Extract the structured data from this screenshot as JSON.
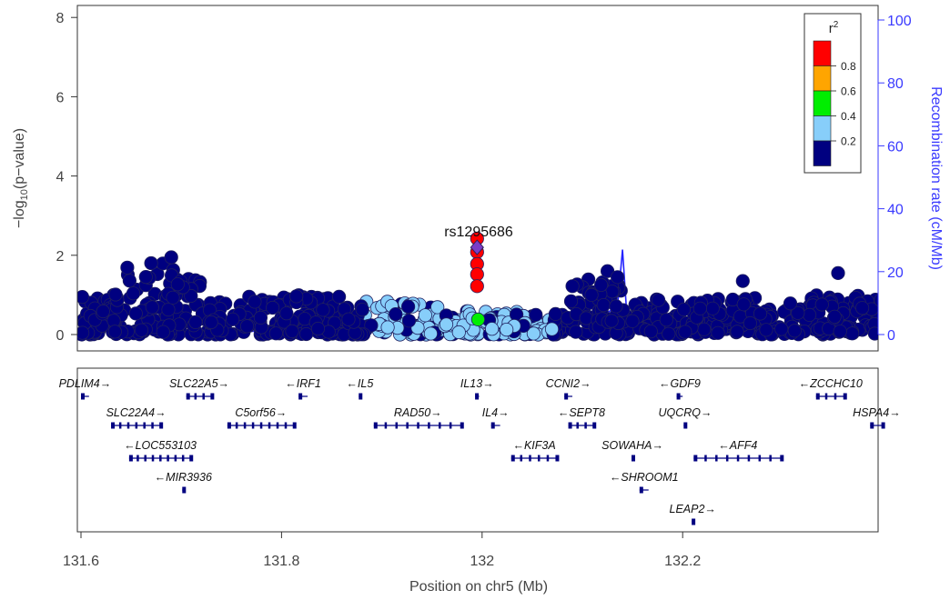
{
  "chart_data": {
    "type": "scatter",
    "xlabel": "Position on chr5 (Mb)",
    "ylabel_left": "−log",
    "ylabel_left_sub": "10",
    "ylabel_left_tail": "(p−value)",
    "ylabel_right": "Recombination rate (cM/Mb)",
    "xlim": [
      131.6,
      132.4
    ],
    "ylim": [
      0,
      8.4
    ],
    "y2lim": [
      0,
      105
    ],
    "x_ticks": [
      "131.6",
      "131.8",
      "132",
      "132.2"
    ],
    "y_ticks": [
      "0",
      "2",
      "4",
      "6",
      "8"
    ],
    "y2_ticks": [
      "0",
      "20",
      "40",
      "60",
      "80",
      "100"
    ],
    "lead_snp": {
      "name": "rs1295686",
      "x": 131.995,
      "y": 2.2
    },
    "legend": {
      "title": "r",
      "title_sup": "2",
      "bins": [
        {
          "label": "0.8",
          "color": "#ff0000"
        },
        {
          "label": "0.6",
          "color": "#ffa500"
        },
        {
          "label": "0.4",
          "color": "#00ee00"
        },
        {
          "label": "0.2",
          "color": "#87cefa"
        },
        {
          "label": "",
          "color": "#000080"
        }
      ]
    },
    "highlight_points": [
      {
        "x": 131.995,
        "y": 2.42,
        "r2": "red"
      },
      {
        "x": 131.995,
        "y": 2.08,
        "r2": "red"
      },
      {
        "x": 131.995,
        "y": 1.78,
        "r2": "red"
      },
      {
        "x": 131.995,
        "y": 1.52,
        "r2": "red"
      },
      {
        "x": 131.995,
        "y": 1.22,
        "r2": "red"
      },
      {
        "x": 131.996,
        "y": 0.38,
        "r2": "green"
      }
    ],
    "recombination_peaks": [
      {
        "x": 131.6,
        "y": 1
      },
      {
        "x": 131.78,
        "y": 1
      },
      {
        "x": 131.83,
        "y": 3
      },
      {
        "x": 131.95,
        "y": 2
      },
      {
        "x": 132.03,
        "y": 4
      },
      {
        "x": 132.12,
        "y": 6
      },
      {
        "x": 132.135,
        "y": 9
      },
      {
        "x": 132.14,
        "y": 27
      },
      {
        "x": 132.145,
        "y": 3
      },
      {
        "x": 132.2,
        "y": 2
      },
      {
        "x": 132.4,
        "y": 1
      }
    ],
    "genes": [
      {
        "name": "PDLIM4",
        "dir": "right",
        "row": 0,
        "start": 131.6,
        "end": 131.608
      },
      {
        "name": "SLC22A5",
        "dir": "right",
        "row": 0,
        "start": 131.705,
        "end": 131.731
      },
      {
        "name": "IRF1",
        "dir": "left",
        "row": 0,
        "start": 131.817,
        "end": 131.826
      },
      {
        "name": "IL5",
        "dir": "left",
        "row": 0,
        "start": 131.877,
        "end": 131.879
      },
      {
        "name": "IL13",
        "dir": "right",
        "row": 0,
        "start": 131.993,
        "end": 131.997
      },
      {
        "name": "CCNI2",
        "dir": "right",
        "row": 0,
        "start": 132.082,
        "end": 132.09
      },
      {
        "name": "GDF9",
        "dir": "left",
        "row": 0,
        "start": 132.194,
        "end": 132.2
      },
      {
        "name": "ZCCHC10",
        "dir": "left",
        "row": 0,
        "start": 132.333,
        "end": 132.362
      },
      {
        "name": "SLC22A4",
        "dir": "right",
        "row": 1,
        "start": 131.63,
        "end": 131.68
      },
      {
        "name": "C5orf56",
        "dir": "right",
        "row": 1,
        "start": 131.746,
        "end": 131.813
      },
      {
        "name": "RAD50",
        "dir": "right",
        "row": 1,
        "start": 131.892,
        "end": 131.98
      },
      {
        "name": "IL4",
        "dir": "right",
        "row": 1,
        "start": 132.009,
        "end": 132.018
      },
      {
        "name": "SEPT8",
        "dir": "left",
        "row": 1,
        "start": 132.086,
        "end": 132.112
      },
      {
        "name": "UQCRQ",
        "dir": "right",
        "row": 1,
        "start": 132.201,
        "end": 132.204
      },
      {
        "name": "HSPA4",
        "dir": "right",
        "row": 1,
        "start": 132.387,
        "end": 132.4
      },
      {
        "name": "LOC553103",
        "dir": "left",
        "row": 2,
        "start": 131.648,
        "end": 131.71
      },
      {
        "name": "KIF3A",
        "dir": "left",
        "row": 2,
        "start": 132.029,
        "end": 132.075
      },
      {
        "name": "SOWAHA",
        "dir": "right",
        "row": 2,
        "start": 132.149,
        "end": 132.151
      },
      {
        "name": "AFF4",
        "dir": "left",
        "row": 2,
        "start": 132.211,
        "end": 132.299
      },
      {
        "name": "MIR3936",
        "dir": "left",
        "row": 3,
        "start": 131.701,
        "end": 131.702
      },
      {
        "name": "SHROOM1",
        "dir": "left",
        "row": 3,
        "start": 132.157,
        "end": 132.166
      },
      {
        "name": "LEAP2",
        "dir": "right",
        "row": 4,
        "start": 132.209,
        "end": 132.211
      }
    ]
  }
}
